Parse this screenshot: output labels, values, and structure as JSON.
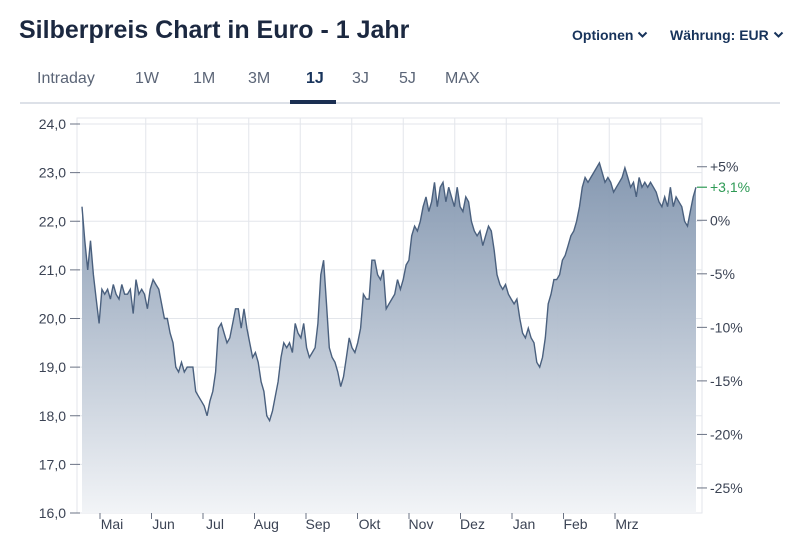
{
  "header": {
    "title": "Silberpreis Chart in Euro - 1 Jahr",
    "options_label": "Optionen",
    "currency_label": "Währung: EUR"
  },
  "tabs": [
    {
      "label": "Intraday",
      "active": false
    },
    {
      "label": "1W",
      "active": false
    },
    {
      "label": "1M",
      "active": false
    },
    {
      "label": "3M",
      "active": false
    },
    {
      "label": "1J",
      "active": true
    },
    {
      "label": "3J",
      "active": false
    },
    {
      "label": "5J",
      "active": false
    },
    {
      "label": "MAX",
      "active": false
    }
  ],
  "colors": {
    "line": "#4a607e",
    "fill_top": "#7f93ad",
    "fill_bottom": "#f2f4f7",
    "positive": "#2e9a55",
    "grid": "#e3e6eb"
  },
  "chart_data": {
    "type": "area",
    "title": "",
    "xlabel": "",
    "ylabel": "",
    "ylim": [
      16.0,
      24.0
    ],
    "yticks": [
      "16,0",
      "17,0",
      "18,0",
      "19,0",
      "20,0",
      "21,0",
      "22,0",
      "23,0",
      "24,0"
    ],
    "right_axis": {
      "base": 22.02,
      "ticks": [
        "+5%",
        "0%",
        "-5%",
        "-10%",
        "-15%",
        "-20%",
        "-25%"
      ],
      "tick_values": [
        5,
        0,
        -5,
        -10,
        -15,
        -20,
        -25
      ],
      "last_change_label": "+3,1%"
    },
    "grid": true,
    "months": [
      "Mai",
      "Jun",
      "Jul",
      "Aug",
      "Sep",
      "Okt",
      "Nov",
      "Dez",
      "Jan",
      "Feb",
      "Mrz"
    ],
    "series": [
      {
        "x": [
          0.0,
          0.25,
          0.5,
          0.75,
          1.0,
          1.25,
          1.5,
          1.75,
          2.0,
          2.25,
          2.5,
          2.75,
          3.0,
          3.25,
          3.5,
          3.75,
          4.0,
          4.25,
          4.5,
          4.75,
          5.0,
          5.25,
          5.5,
          5.75,
          6.0,
          6.25,
          6.5,
          6.75,
          7.0,
          7.25,
          7.5,
          7.75,
          8.0,
          8.25,
          8.5,
          8.75,
          9.0,
          9.25,
          9.5,
          9.75,
          10.0,
          10.25,
          10.5,
          10.75,
          11.0,
          11.25,
          11.5,
          11.75,
          12.0,
          12.25,
          12.5,
          12.75,
          13.0,
          13.25,
          13.5,
          13.75,
          14.0,
          14.25,
          14.5,
          14.75,
          15.0,
          15.25,
          15.5,
          15.75,
          16.0,
          16.25,
          16.5,
          16.75,
          17.0,
          17.25,
          17.5,
          17.75,
          18.0,
          18.25,
          18.5,
          18.75,
          19.0,
          19.25,
          19.5,
          19.75,
          20.0,
          20.25,
          20.5,
          20.75,
          21.0,
          21.25,
          21.5,
          21.75,
          22.0,
          22.25,
          22.5,
          22.75,
          23.0,
          23.25,
          23.5,
          23.75,
          24.0,
          24.25,
          24.5,
          24.75,
          25.0,
          25.25,
          25.5,
          25.75,
          26.0,
          26.25,
          26.5,
          26.75,
          27.0,
          27.25,
          27.5,
          27.75,
          28.0,
          28.25,
          28.5,
          28.75,
          29.0,
          29.25,
          29.5,
          29.75,
          30.0,
          30.25,
          30.5,
          30.75,
          31.0,
          31.25,
          31.5,
          31.75,
          32.0,
          32.25,
          32.5,
          32.75,
          33.0,
          33.25,
          33.5,
          33.75,
          34.0,
          34.25,
          34.5,
          34.75,
          35.0,
          35.25,
          35.5,
          35.75,
          36.0,
          36.25,
          36.5,
          36.75,
          37.0,
          37.25,
          37.5,
          37.75,
          38.0,
          38.25,
          38.5,
          38.75,
          39.0,
          39.25,
          39.5,
          39.75,
          40.0,
          40.25,
          40.5,
          40.75,
          41.0,
          41.25,
          41.5,
          41.75,
          42.0,
          42.25,
          42.5,
          42.75,
          43.0,
          43.25,
          43.5,
          43.75,
          44.0,
          44.25,
          44.5,
          44.75,
          45.0,
          45.25,
          45.5,
          45.75,
          46.0,
          46.25,
          46.5,
          46.75,
          47.0,
          47.25,
          47.5,
          47.75,
          48.0,
          48.25,
          48.5,
          48.75,
          49.0,
          49.25,
          49.5,
          49.75,
          50.0,
          50.25,
          50.5,
          50.75,
          51.0,
          51.25,
          51.5,
          51.75,
          52.0,
          52.25,
          52.5,
          52.75,
          53.0,
          53.25,
          53.5,
          53.75,
          54.0
        ],
        "values": [
          22.3,
          21.6,
          21.0,
          21.6,
          20.9,
          20.4,
          19.9,
          20.6,
          20.5,
          20.6,
          20.4,
          20.7,
          20.5,
          20.4,
          20.7,
          20.5,
          20.5,
          20.6,
          20.1,
          20.8,
          20.5,
          20.6,
          20.5,
          20.2,
          20.6,
          20.8,
          20.7,
          20.6,
          20.3,
          20.0,
          20.0,
          19.7,
          19.5,
          19.0,
          18.9,
          19.1,
          18.9,
          19.0,
          19.0,
          19.0,
          18.5,
          18.4,
          18.3,
          18.2,
          18.0,
          18.3,
          18.5,
          18.9,
          19.8,
          19.9,
          19.7,
          19.5,
          19.6,
          19.9,
          20.2,
          20.2,
          19.8,
          20.2,
          19.8,
          19.5,
          19.2,
          19.3,
          19.1,
          18.7,
          18.5,
          18.0,
          17.9,
          18.1,
          18.4,
          18.7,
          19.2,
          19.5,
          19.4,
          19.5,
          19.3,
          19.9,
          19.7,
          19.6,
          19.9,
          19.4,
          19.2,
          19.3,
          19.4,
          19.9,
          20.9,
          21.2,
          20.3,
          19.4,
          19.2,
          19.1,
          18.9,
          18.6,
          18.8,
          19.2,
          19.6,
          19.4,
          19.3,
          19.5,
          19.8,
          20.5,
          20.4,
          20.4,
          21.2,
          21.2,
          20.9,
          20.8,
          21.0,
          20.2,
          20.3,
          20.4,
          20.5,
          20.8,
          20.6,
          20.8,
          21.1,
          21.2,
          21.7,
          21.9,
          21.8,
          22.0,
          22.3,
          22.5,
          22.2,
          22.4,
          22.8,
          22.3,
          22.7,
          22.8,
          22.4,
          22.7,
          22.5,
          22.3,
          22.7,
          22.3,
          22.2,
          22.5,
          22.4,
          22.0,
          21.8,
          21.7,
          21.8,
          21.5,
          21.7,
          21.9,
          21.8,
          21.4,
          20.9,
          20.7,
          20.6,
          20.7,
          20.5,
          20.4,
          20.3,
          20.4,
          20.0,
          19.7,
          19.6,
          19.8,
          19.6,
          19.5,
          19.1,
          19.0,
          19.2,
          19.6,
          20.3,
          20.5,
          20.8,
          20.8,
          20.9,
          21.2,
          21.3,
          21.5,
          21.7,
          21.8,
          22.0,
          22.3,
          22.7,
          22.9,
          22.8,
          22.9,
          23.0,
          23.1,
          23.2,
          23.0,
          22.8,
          22.9,
          22.8,
          22.6,
          22.7,
          22.8,
          22.9,
          23.1,
          22.9,
          22.7,
          22.8,
          22.5,
          22.9,
          22.7,
          22.8,
          22.7,
          22.8,
          22.7,
          22.6,
          22.4,
          22.3,
          22.5,
          22.3,
          22.7,
          22.3,
          22.5,
          22.4,
          22.3,
          22.0,
          21.9,
          22.2,
          22.5,
          22.7
        ]
      }
    ]
  }
}
